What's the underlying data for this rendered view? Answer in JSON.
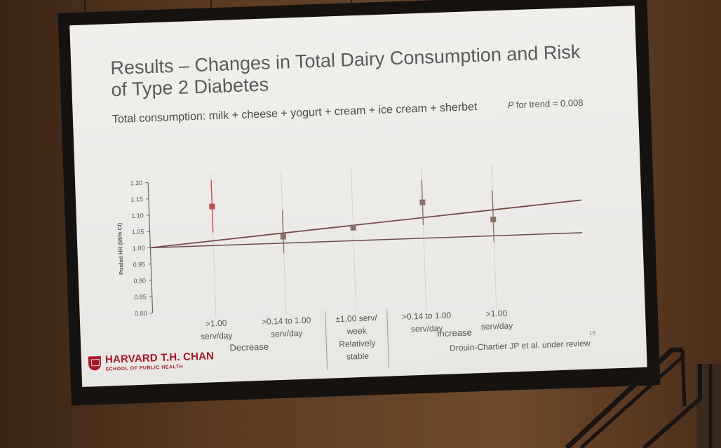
{
  "slide": {
    "title": "Results – Changes in Total Dairy Consumption and Risk of Type 2 Diabetes",
    "subtitle": "Total consumption: milk + cheese + yogurt + cream + ice cream + sherbet",
    "p_trend_label": "P",
    "p_trend_rest": "for trend = 0.008",
    "logo_name": "HARVARD T.H. CHAN",
    "logo_sub": "SCHOOL OF PUBLIC HEALTH",
    "citation": "Drouin-Chartier JP et al. under review",
    "page_number": "15"
  },
  "chart_data": {
    "type": "scatter",
    "title": "",
    "ylabel": "Pooled HR (95% CI)",
    "ylim": [
      0.8,
      1.2
    ],
    "yticks": [
      "0.80",
      "0.85",
      "0.90",
      "0.95",
      "1.00",
      "1.05",
      "1.10",
      "1.15",
      "1.20"
    ],
    "categories": [
      [
        ">1.00",
        "serv/day"
      ],
      [
        ">0.14 to 1.00",
        "serv/day"
      ],
      [
        "±1.00 serv/",
        "week",
        "Relatively",
        "stable"
      ],
      [
        ">0.14 to 1.00",
        "serv/day"
      ],
      [
        ">1.00",
        "serv/day"
      ]
    ],
    "groups": [
      "Decrease",
      "Increase"
    ],
    "series": [
      {
        "name": "Pooled HR",
        "values": [
          1.12,
          1.02,
          1.04,
          1.11,
          1.05
        ],
        "ci_low": [
          1.04,
          0.97,
          1.04,
          1.04,
          0.98
        ],
        "ci_high": [
          1.22,
          1.1,
          1.04,
          1.18,
          1.14
        ],
        "colors": [
          "#c0504d",
          "#8b6f6a",
          "#8b6f6a",
          "#8b6f6a",
          "#8b6f6a"
        ]
      }
    ],
    "trend_line": {
      "start": 1.0,
      "end": 1.1
    },
    "reference_line": 1.0
  }
}
